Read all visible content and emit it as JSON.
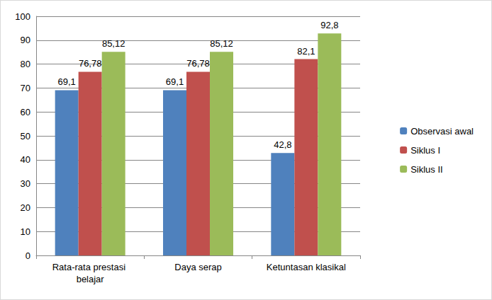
{
  "chart_data": {
    "type": "bar",
    "categories": [
      "Rata-rata prestasi belajar",
      "Daya serap",
      "Ketuntasan klasikal"
    ],
    "series": [
      {
        "name": "Observasi awal",
        "color": "#4f81bd",
        "values": [
          69.1,
          69.1,
          42.8
        ],
        "value_labels": [
          "69,1",
          "69,1",
          "42,8"
        ]
      },
      {
        "name": "Siklus I",
        "color": "#c0504d",
        "values": [
          76.78,
          76.78,
          82.1
        ],
        "value_labels": [
          "76,78",
          "76,78",
          "82,1"
        ]
      },
      {
        "name": "Siklus II",
        "color": "#9bbb59",
        "values": [
          85.12,
          85.12,
          92.8
        ],
        "value_labels": [
          "85,12",
          "85,12",
          "92,8"
        ]
      }
    ],
    "ylim": [
      0,
      100
    ],
    "yticks": [
      0,
      10,
      20,
      30,
      40,
      50,
      60,
      70,
      80,
      90,
      100
    ],
    "grid": true,
    "legend": "right",
    "data_labels": true
  }
}
